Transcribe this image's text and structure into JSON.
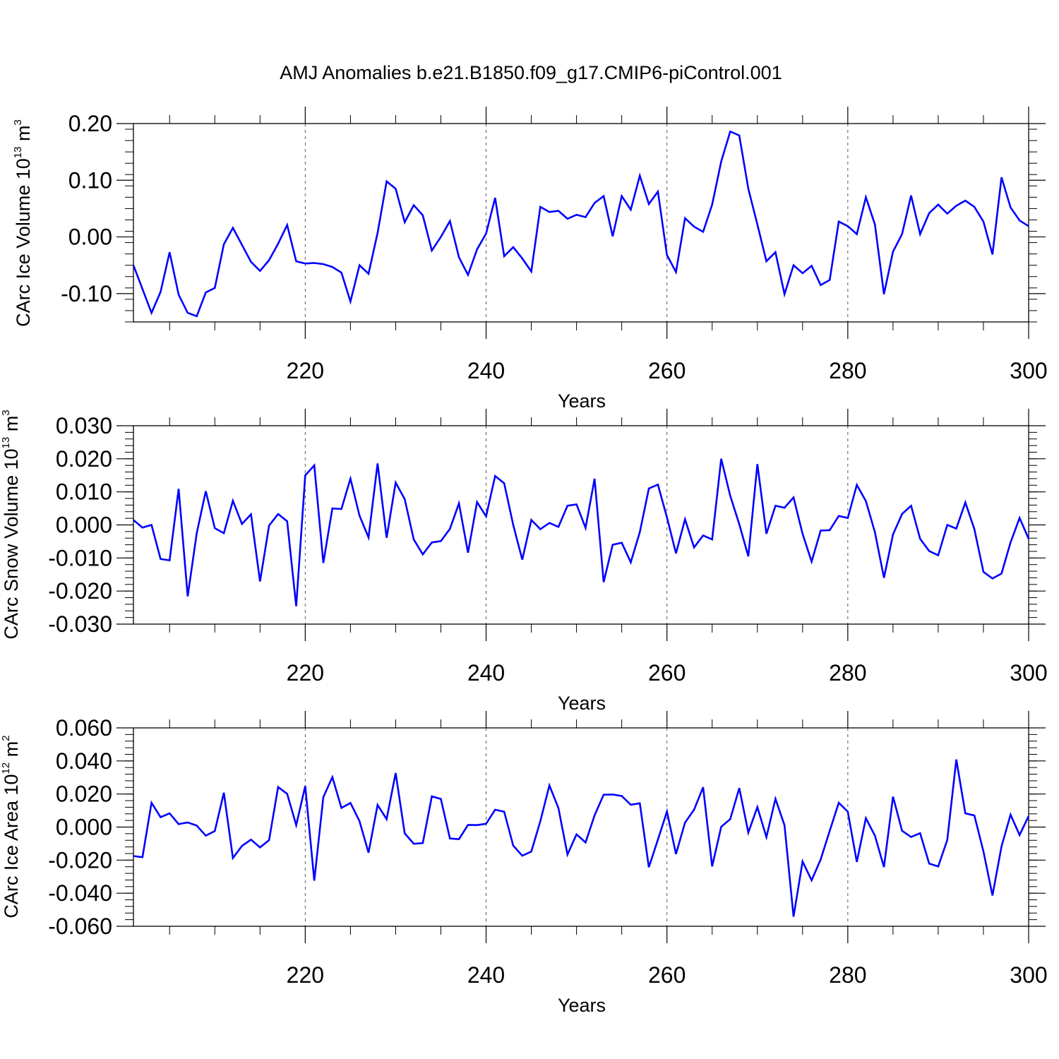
{
  "title": "AMJ Anomalies b.e21.B1850.f09_g17.CMIP6-piControl.001",
  "line_color": "#0000ff",
  "chart_data": [
    {
      "type": "line",
      "xlabel": "Years",
      "ylabel": "CArc Ice Volume 10",
      "ylabel_sup": "13",
      "ylabel_unit": " m",
      "ylabel_unit_sup": "3",
      "xlim": [
        201,
        300
      ],
      "ylim": [
        -0.15,
        0.2
      ],
      "xticks": [
        220,
        240,
        260,
        280,
        300
      ],
      "xtick_labels": [
        "220",
        "240",
        "260",
        "280",
        "300"
      ],
      "yticks": [
        0.2,
        0.1,
        0.0,
        -0.1
      ],
      "ytick_labels": [
        "0.20",
        "0.10",
        "0.00",
        "-0.10"
      ],
      "grid_x": true,
      "x_start": 201,
      "values": [
        -0.05,
        -0.092,
        -0.134,
        -0.097,
        -0.027,
        -0.102,
        -0.134,
        -0.14,
        -0.098,
        -0.09,
        -0.013,
        0.016,
        -0.014,
        -0.044,
        -0.06,
        -0.041,
        -0.012,
        0.021,
        -0.043,
        -0.047,
        -0.046,
        -0.048,
        -0.053,
        -0.063,
        -0.114,
        -0.05,
        -0.065,
        0.007,
        0.098,
        0.085,
        0.026,
        0.056,
        0.038,
        -0.024,
        0.0,
        0.028,
        -0.036,
        -0.067,
        -0.022,
        0.006,
        0.069,
        -0.034,
        -0.018,
        -0.038,
        -0.061,
        0.053,
        0.044,
        0.046,
        0.032,
        0.039,
        0.035,
        0.06,
        0.072,
        0.001,
        0.072,
        0.048,
        0.108,
        0.058,
        0.08,
        -0.032,
        -0.062,
        0.033,
        0.018,
        0.009,
        0.057,
        0.133,
        0.186,
        0.179,
        0.085,
        0.022,
        -0.043,
        -0.027,
        -0.101,
        -0.05,
        -0.064,
        -0.051,
        -0.085,
        -0.076,
        0.027,
        0.019,
        0.005,
        0.07,
        0.022,
        -0.101,
        -0.026,
        0.005,
        0.073,
        0.005,
        0.042,
        0.057,
        0.041,
        0.055,
        0.064,
        0.053,
        0.027,
        -0.031,
        0.105,
        0.052,
        0.029,
        0.019
      ]
    },
    {
      "type": "line",
      "xlabel": "Years",
      "ylabel": "CArc Snow Volume 10",
      "ylabel_sup": "13",
      "ylabel_unit": " m",
      "ylabel_unit_sup": "3",
      "xlim": [
        201,
        300
      ],
      "ylim": [
        -0.03,
        0.03
      ],
      "xticks": [
        220,
        240,
        260,
        280,
        300
      ],
      "xtick_labels": [
        "220",
        "240",
        "260",
        "280",
        "300"
      ],
      "yticks": [
        0.03,
        0.02,
        0.01,
        0.0,
        -0.01,
        -0.02,
        -0.03
      ],
      "ytick_labels": [
        "0.030",
        "0.020",
        "0.010",
        "0.000",
        "-0.010",
        "-0.020",
        "-0.030"
      ],
      "grid_x": true,
      "x_start": 201,
      "values": [
        0.0015,
        -0.0008,
        0.0,
        -0.0103,
        -0.0107,
        0.0109,
        -0.0216,
        -0.0025,
        0.0102,
        -0.001,
        -0.0025,
        0.0073,
        0.0003,
        0.0032,
        -0.0171,
        -0.0002,
        0.0033,
        0.0011,
        -0.0246,
        0.015,
        0.018,
        -0.0115,
        0.005,
        0.0048,
        0.014,
        0.0028,
        -0.0038,
        0.0186,
        -0.0039,
        0.0128,
        0.0078,
        -0.0044,
        -0.0089,
        -0.0053,
        -0.0049,
        -0.0012,
        0.0065,
        -0.0084,
        0.0069,
        0.0026,
        0.0148,
        0.0126,
        0.0,
        -0.0105,
        0.0015,
        -0.0013,
        0.0006,
        -0.0006,
        0.0058,
        0.0062,
        -0.0009,
        0.014,
        -0.0173,
        -0.006,
        -0.0054,
        -0.0113,
        -0.0022,
        0.011,
        0.0122,
        0.0023,
        -0.0086,
        0.0017,
        -0.0068,
        -0.0032,
        -0.0044,
        0.02,
        0.0088,
        0.0002,
        -0.0095,
        0.0184,
        -0.0027,
        0.0058,
        0.0052,
        0.0083,
        -0.0027,
        -0.0111,
        -0.0017,
        -0.0016,
        0.0027,
        0.0021,
        0.0121,
        0.0072,
        -0.0022,
        -0.016,
        -0.0029,
        0.0033,
        0.0058,
        -0.0042,
        -0.0079,
        -0.0092,
        0.0,
        -0.0011,
        0.0068,
        -0.0013,
        -0.0142,
        -0.0162,
        -0.0147,
        -0.0053,
        0.0021,
        -0.0042
      ]
    },
    {
      "type": "line",
      "xlabel": "Years",
      "ylabel": "CArc Ice Area 10",
      "ylabel_sup": "12",
      "ylabel_unit": " m",
      "ylabel_unit_sup": "2",
      "xlim": [
        201,
        300
      ],
      "ylim": [
        -0.06,
        0.06
      ],
      "xticks": [
        220,
        240,
        260,
        280,
        300
      ],
      "xtick_labels": [
        "220",
        "240",
        "260",
        "280",
        "300"
      ],
      "yticks": [
        0.06,
        0.04,
        0.02,
        0.0,
        -0.02,
        -0.04,
        -0.06
      ],
      "ytick_labels": [
        "0.060",
        "0.040",
        "0.020",
        "0.000",
        "-0.020",
        "-0.040",
        "-0.060"
      ],
      "grid_x": true,
      "x_start": 201,
      "values": [
        -0.0175,
        -0.0182,
        0.0147,
        0.006,
        0.0083,
        0.0018,
        0.0028,
        0.0009,
        -0.0052,
        -0.0024,
        0.0208,
        -0.0187,
        -0.0114,
        -0.0076,
        -0.0123,
        -0.0079,
        0.0242,
        0.0201,
        0.0012,
        0.0248,
        -0.0324,
        0.0181,
        0.0302,
        0.0116,
        0.0146,
        0.0036,
        -0.0155,
        0.0134,
        0.0048,
        0.0327,
        -0.0038,
        -0.0101,
        -0.0097,
        0.0186,
        0.017,
        -0.0069,
        -0.0073,
        0.0013,
        0.0012,
        0.002,
        0.0105,
        0.0093,
        -0.0112,
        -0.0173,
        -0.0148,
        0.0036,
        0.0252,
        0.0115,
        -0.0166,
        -0.0044,
        -0.0093,
        0.0071,
        0.0196,
        0.0197,
        0.0188,
        0.0135,
        0.0144,
        -0.0243,
        -0.0076,
        0.0094,
        -0.0163,
        0.0027,
        0.0105,
        0.0241,
        -0.0238,
        0.0002,
        0.0048,
        0.0236,
        -0.0033,
        0.0121,
        -0.0061,
        0.0171,
        0.0011,
        -0.0542,
        -0.0208,
        -0.0322,
        -0.0196,
        -0.0023,
        0.0147,
        0.0093,
        -0.0211,
        0.0054,
        -0.0052,
        -0.0242,
        0.0184,
        -0.0022,
        -0.006,
        -0.0037,
        -0.0221,
        -0.0238,
        -0.0078,
        0.0409,
        0.0083,
        0.007,
        -0.0147,
        -0.0414,
        -0.0117,
        0.0075,
        -0.0048,
        0.0067
      ]
    }
  ]
}
